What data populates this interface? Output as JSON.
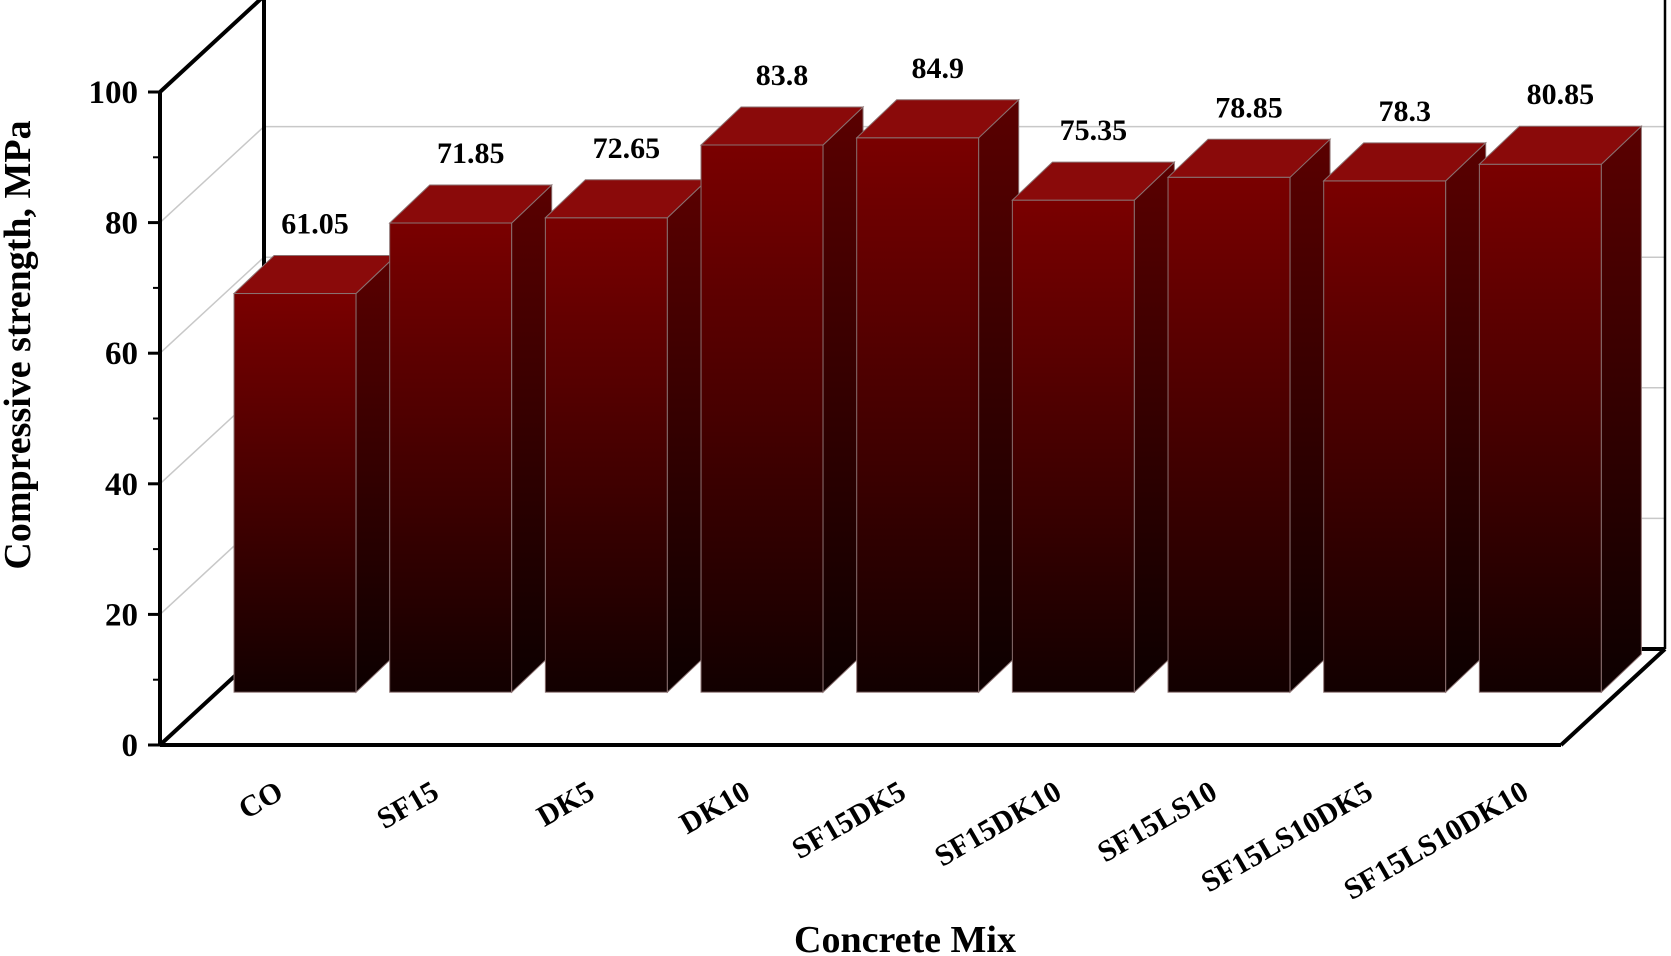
{
  "chart_data": {
    "type": "bar",
    "style": "3d",
    "categories": [
      "CO",
      "SF15",
      "DK5",
      "DK10",
      "SF15DK5",
      "SF15DK10",
      "SF15LS10",
      "SF15LS10DK5",
      "SF15LS10DK10"
    ],
    "values": [
      61.05,
      71.85,
      72.65,
      83.8,
      84.9,
      75.35,
      78.85,
      78.3,
      80.85
    ],
    "data_labels": [
      "61.05",
      "71.85",
      "72.65",
      "83.8",
      "84.9",
      "75.35",
      "78.85",
      "78.3",
      "80.85"
    ],
    "xlabel": "Concrete Mix",
    "ylabel": "Compressive strength, MPa",
    "ylim": [
      0,
      100
    ],
    "yticks": [
      0,
      20,
      40,
      60,
      80,
      100
    ],
    "grid": true,
    "colors": {
      "bar_top": "#7a0000",
      "bar_bottom": "#120000",
      "bar_side": "#5a0000",
      "bar_cap": "#8a0a0a",
      "grid": "#c8c8c8"
    }
  }
}
